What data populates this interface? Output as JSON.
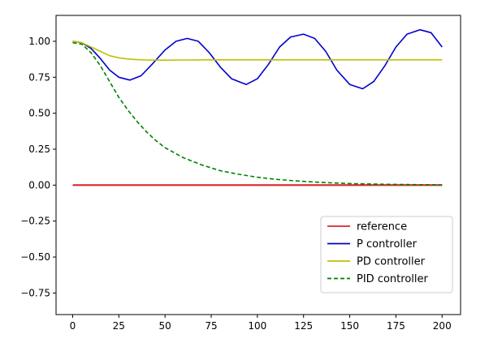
{
  "chart_data": {
    "type": "line",
    "title": "",
    "xlabel": "",
    "ylabel": "",
    "xlim": [
      -9,
      210
    ],
    "ylim": [
      -0.9,
      1.18
    ],
    "xticks": [
      0,
      25,
      50,
      75,
      100,
      125,
      150,
      175,
      200
    ],
    "xtick_labels": [
      "0",
      "25",
      "50",
      "75",
      "100",
      "125",
      "150",
      "175",
      "200"
    ],
    "yticks": [
      -0.75,
      -0.5,
      -0.25,
      0.0,
      0.25,
      0.5,
      0.75,
      1.0
    ],
    "ytick_labels": [
      "−0.75",
      "−0.50",
      "−0.25",
      "0.00",
      "0.25",
      "0.50",
      "0.75",
      "1.00"
    ],
    "grid": false,
    "legend_position": "lower-right",
    "series": [
      {
        "name": "reference",
        "color": "#d62728",
        "style": "solid",
        "x": [
          0,
          200
        ],
        "y": [
          0.0,
          0.0
        ]
      },
      {
        "name": "P controller",
        "color": "#0000cc",
        "style": "solid",
        "x": [
          0,
          5,
          10,
          15,
          20,
          25,
          31,
          37,
          43,
          50,
          56,
          62,
          68,
          74,
          80,
          86,
          94,
          100,
          106,
          112,
          118,
          125,
          131,
          137,
          143,
          150,
          157,
          163,
          169,
          175,
          181,
          188,
          194,
          200
        ],
        "y": [
          1.0,
          0.99,
          0.95,
          0.88,
          0.8,
          0.75,
          0.73,
          0.76,
          0.84,
          0.94,
          1.0,
          1.02,
          1.0,
          0.92,
          0.82,
          0.74,
          0.7,
          0.74,
          0.84,
          0.96,
          1.03,
          1.05,
          1.02,
          0.93,
          0.8,
          0.7,
          0.67,
          0.72,
          0.83,
          0.96,
          1.05,
          1.08,
          1.06,
          0.96
        ]
      },
      {
        "name": "PD controller",
        "color": "#bfbf00",
        "style": "solid",
        "x": [
          0,
          5,
          10,
          15,
          20,
          25,
          30,
          35,
          40,
          45,
          50,
          60,
          75,
          100,
          125,
          150,
          175,
          200
        ],
        "y": [
          1.0,
          0.99,
          0.96,
          0.93,
          0.9,
          0.885,
          0.877,
          0.872,
          0.87,
          0.869,
          0.869,
          0.87,
          0.871,
          0.871,
          0.871,
          0.871,
          0.871,
          0.871
        ]
      },
      {
        "name": "PID controller",
        "color": "#008000",
        "style": "dashed",
        "x": [
          0,
          5,
          10,
          15,
          20,
          25,
          30,
          35,
          40,
          45,
          50,
          60,
          70,
          80,
          90,
          100,
          110,
          120,
          130,
          140,
          150,
          160,
          170,
          180,
          190,
          200
        ],
        "y": [
          0.99,
          0.98,
          0.92,
          0.83,
          0.72,
          0.61,
          0.52,
          0.44,
          0.37,
          0.31,
          0.26,
          0.19,
          0.14,
          0.1,
          0.075,
          0.055,
          0.04,
          0.03,
          0.022,
          0.016,
          0.011,
          0.008,
          0.006,
          0.004,
          0.003,
          0.002
        ]
      }
    ]
  }
}
